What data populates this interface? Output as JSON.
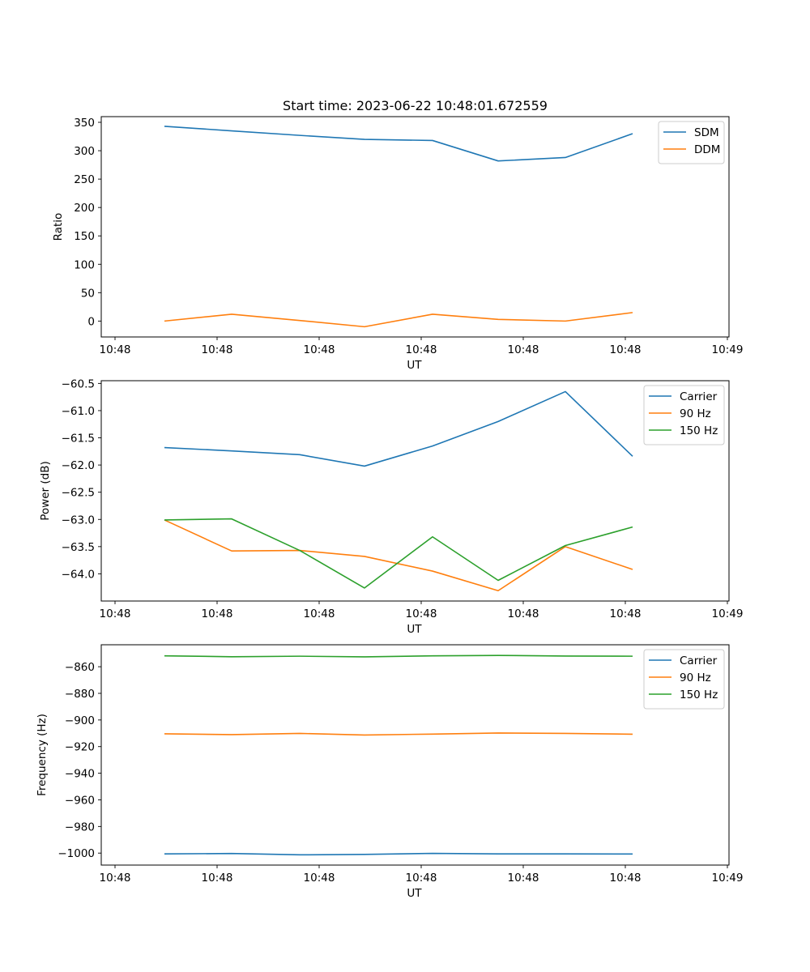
{
  "chart_data": [
    {
      "type": "line",
      "title": "Start time: 2023-06-22 10:48:01.672559",
      "xlabel": "UT",
      "ylabel": "Ratio",
      "x_tick_labels": [
        "10:48",
        "10:48",
        "10:48",
        "10:48",
        "10:48",
        "10:48",
        "10:49"
      ],
      "ylim": [
        -28,
        360
      ],
      "y_ticks": [
        0,
        50,
        100,
        150,
        200,
        250,
        300,
        350
      ],
      "legend_position": "top-right",
      "grid": false,
      "series": [
        {
          "name": "SDM",
          "color": "#1f77b4",
          "values": [
            343,
            335,
            327,
            320,
            318,
            282,
            288,
            330
          ]
        },
        {
          "name": "DDM",
          "color": "#ff7f0e",
          "values": [
            0,
            12,
            1,
            -10,
            12,
            3,
            0,
            15
          ]
        }
      ]
    },
    {
      "type": "line",
      "title": "",
      "xlabel": "UT",
      "ylabel": "Power (dB)",
      "x_tick_labels": [
        "10:48",
        "10:48",
        "10:48",
        "10:48",
        "10:48",
        "10:48",
        "10:49"
      ],
      "ylim": [
        -64.5,
        -60.45
      ],
      "y_ticks": [
        -64.0,
        -63.5,
        -63.0,
        -62.5,
        -62.0,
        -61.5,
        -61.0,
        -60.5
      ],
      "legend_position": "top-right",
      "grid": false,
      "series": [
        {
          "name": "Carrier",
          "color": "#1f77b4",
          "values": [
            -61.68,
            -61.74,
            -61.81,
            -62.02,
            -61.65,
            -61.2,
            -60.65,
            -61.84
          ]
        },
        {
          "name": "90 Hz",
          "color": "#ff7f0e",
          "values": [
            -63.01,
            -63.58,
            -63.57,
            -63.68,
            -63.95,
            -64.31,
            -63.5,
            -63.92
          ]
        },
        {
          "name": "150 Hz",
          "color": "#2ca02c",
          "values": [
            -63.01,
            -62.99,
            -63.57,
            -64.26,
            -63.32,
            -64.12,
            -63.48,
            -63.14
          ]
        }
      ]
    },
    {
      "type": "line",
      "title": "",
      "xlabel": "UT",
      "ylabel": "Frequency (Hz)",
      "x_tick_labels": [
        "10:48",
        "10:48",
        "10:48",
        "10:48",
        "10:48",
        "10:48",
        "10:49"
      ],
      "ylim": [
        -1009,
        -843.5
      ],
      "y_ticks": [
        -1000,
        -980,
        -960,
        -940,
        -920,
        -900,
        -880,
        -860
      ],
      "legend_position": "top-right",
      "grid": false,
      "series": [
        {
          "name": "Carrier",
          "color": "#1f77b4",
          "values": [
            -1000.6,
            -1000.3,
            -1001.3,
            -1001.0,
            -1000.2,
            -1000.6,
            -1000.6,
            -1000.7
          ]
        },
        {
          "name": "90 Hz",
          "color": "#ff7f0e",
          "values": [
            -910.4,
            -911.0,
            -910.1,
            -911.3,
            -910.6,
            -909.8,
            -910.1,
            -910.7
          ]
        },
        {
          "name": "150 Hz",
          "color": "#2ca02c",
          "values": [
            -851.8,
            -852.5,
            -852.1,
            -852.6,
            -851.8,
            -851.5,
            -852.0,
            -852.1
          ]
        }
      ]
    }
  ]
}
